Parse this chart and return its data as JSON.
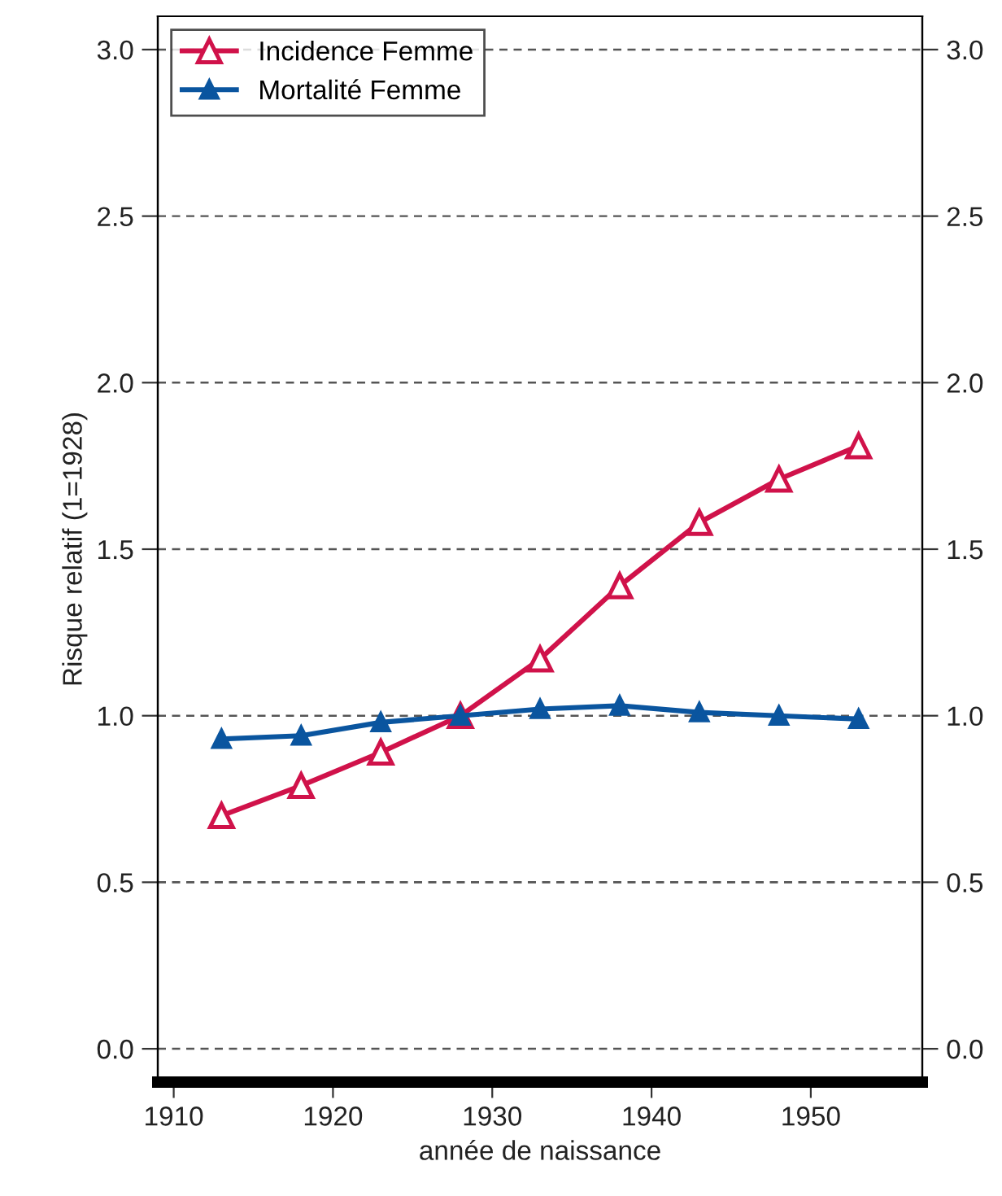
{
  "chart_data": {
    "type": "line",
    "xlabel": "année de naissance",
    "ylabel": "Risque relatif (1=1928)",
    "x": [
      1913,
      1918,
      1923,
      1928,
      1933,
      1938,
      1943,
      1948,
      1953
    ],
    "series": [
      {
        "name": "Incidence Femme",
        "color": "#d0124a",
        "marker": "triangle",
        "values": [
          0.7,
          0.79,
          0.89,
          1.0,
          1.17,
          1.39,
          1.58,
          1.71,
          1.81
        ]
      },
      {
        "name": "Mortalité Femme",
        "color": "#0a559f",
        "marker": "triangle",
        "values": [
          0.93,
          0.94,
          0.98,
          1.0,
          1.02,
          1.03,
          1.01,
          1.0,
          0.99
        ]
      }
    ],
    "xlim": [
      1909,
      1957
    ],
    "xticks": [
      1910,
      1920,
      1930,
      1940,
      1950
    ],
    "ylim": [
      -0.1,
      3.1
    ],
    "yticks": [
      {
        "value": 0,
        "label": "0.0"
      },
      {
        "value": 0.5,
        "label": "0.5"
      },
      {
        "value": 1,
        "label": "1.0"
      },
      {
        "value": 1.5,
        "label": "1.5"
      },
      {
        "value": 2,
        "label": "2.0"
      },
      {
        "value": 2.5,
        "label": "2.5"
      },
      {
        "value": 3,
        "label": "3.0"
      }
    ],
    "y2lim": [
      -0.1,
      3.1
    ],
    "y2ticks": [
      {
        "value": 0,
        "label": "0.0"
      },
      {
        "value": 0.5,
        "label": "0.5"
      },
      {
        "value": 1,
        "label": "1.0"
      },
      {
        "value": 1.5,
        "label": "1.5"
      },
      {
        "value": 2,
        "label": "2.0"
      },
      {
        "value": 2.5,
        "label": "2.5"
      },
      {
        "value": 3,
        "label": "3.0"
      }
    ],
    "grid": "y",
    "legend": "top left",
    "line_style": "solid"
  }
}
